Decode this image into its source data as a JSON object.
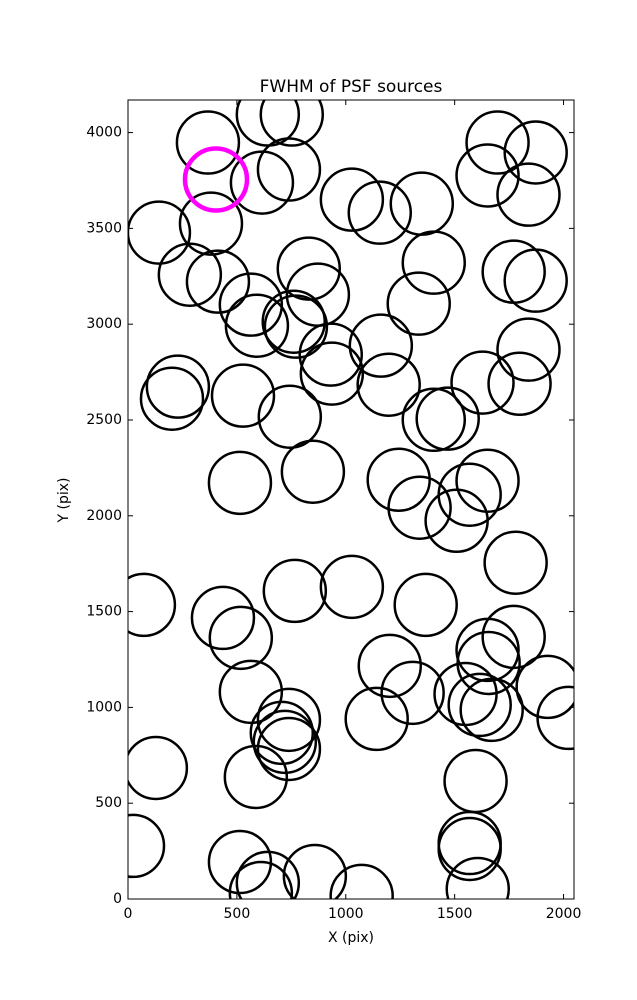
{
  "chart_data": {
    "type": "scatter",
    "title": "FWHM of PSF sources",
    "x_label": "X (pix)",
    "y_label": "Y (pix)",
    "xlim": [
      0,
      2048
    ],
    "ylim": [
      0,
      4170
    ],
    "xticks": [
      0,
      500,
      1000,
      1500,
      2000
    ],
    "yticks": [
      0,
      500,
      1000,
      1500,
      2000,
      2500,
      3000,
      3500,
      4000
    ],
    "series": [
      {
        "color": "#000000",
        "linewidth": 2.5,
        "x": [
          367,
          642,
          752,
          615,
          739,
          381,
          142,
          284,
          413,
          564,
          592,
          761,
          771,
          830,
          872,
          931,
          936,
          1028,
          1156,
          1349,
          1404,
          1335,
          1161,
          1197,
          1404,
          1468,
          1628,
          1798,
          1839,
          1771,
          1872,
          1839,
          1651,
          1697,
          1872,
          229,
          202,
          528,
          743,
          849,
          514,
          1243,
          1339,
          1569,
          1651,
          1509,
          1780,
          73,
          766,
          1028,
          1367,
          436,
          518,
          1771,
          1651,
          1656,
          1202,
          1307,
          1550,
          1615,
          1670,
          1927,
          2023,
          564,
          739,
          706,
          720,
          739,
          1142,
          128,
          587,
          1596,
          23,
          514,
          642,
          610,
          858,
          1073,
          1569,
          1569,
          1606
        ],
        "values": [
          3948,
          4094,
          4094,
          3739,
          3807,
          3525,
          3478,
          3258,
          3222,
          3102,
          2992,
          3013,
          2987,
          3290,
          3154,
          2841,
          2742,
          3650,
          3582,
          3629,
          3321,
          3107,
          2888,
          2684,
          2501,
          2507,
          2695,
          2689,
          2867,
          3274,
          3227,
          3676,
          3776,
          3948,
          3896,
          2674,
          2611,
          2627,
          2517,
          2230,
          2172,
          2188,
          2042,
          2110,
          2183,
          1974,
          1755,
          1535,
          1608,
          1629,
          1535,
          1467,
          1363,
          1368,
          1300,
          1232,
          1217,
          1076,
          1070,
          1013,
          987,
          1107,
          945,
          1081,
          935,
          867,
          820,
          783,
          940,
          684,
          637,
          616,
          277,
          193,
          84,
          31,
          120,
          16,
          292,
          261,
          52
        ]
      },
      {
        "color": "#ff00ff",
        "linewidth": 4.5,
        "x": [
          404
        ],
        "values": [
          3755
        ]
      }
    ]
  }
}
